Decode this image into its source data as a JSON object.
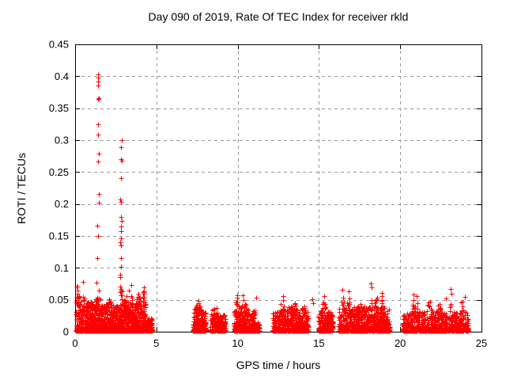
{
  "chart_data": {
    "type": "scatter",
    "title": "Day 090 of 2019, Rate Of TEC Index for receiver rkld",
    "xlabel": "GPS time / hours",
    "ylabel": "ROTI / TECUs",
    "xlim": [
      0,
      25
    ],
    "ylim": [
      0,
      0.45
    ],
    "x_ticks": [
      0,
      5,
      10,
      15,
      20,
      25
    ],
    "y_ticks": [
      0,
      0.05,
      0.1,
      0.15,
      0.2,
      0.25,
      0.3,
      0.35,
      0.4,
      0.45
    ],
    "grid": true,
    "legend": "none",
    "marker": {
      "style": "plus",
      "color": "#ff0000",
      "size": 7
    },
    "grid_color": "#999999",
    "axis_color": "#000000",
    "seed": 90,
    "clusters": [
      {
        "x0": 0.05,
        "x1": 4.35,
        "n": 1700,
        "base": 0.04,
        "pow": 3.2,
        "bumps": [
          [
            0.15,
            0.03,
            0.15
          ],
          [
            0.5,
            0.036,
            0.1
          ],
          [
            0.9,
            0.008,
            0.2
          ],
          [
            1.32,
            0.034,
            0.07
          ],
          [
            1.48,
            0.028,
            0.1
          ],
          [
            2.05,
            0.01,
            0.2
          ],
          [
            2.8,
            0.044,
            0.09
          ],
          [
            3.15,
            0.018,
            0.15
          ],
          [
            3.45,
            0.03,
            0.07
          ],
          [
            3.9,
            0.02,
            0.15
          ],
          [
            4.22,
            0.03,
            0.07
          ]
        ]
      },
      {
        "x0": 4.38,
        "x1": 4.75,
        "n": 130,
        "base": 0.02,
        "pow": 2.5,
        "bumps": []
      },
      {
        "x0": 7.25,
        "x1": 8.05,
        "n": 270,
        "base": 0.03,
        "pow": 2.7,
        "bumps": [
          [
            7.42,
            0.012,
            0.1
          ],
          [
            7.62,
            0.016,
            0.12
          ]
        ]
      },
      {
        "x0": 8.3,
        "x1": 9.25,
        "n": 270,
        "base": 0.026,
        "pow": 2.7,
        "bumps": [
          [
            8.6,
            0.015,
            0.18
          ]
        ]
      },
      {
        "x0": 9.75,
        "x1": 11.1,
        "n": 360,
        "base": 0.033,
        "pow": 2.6,
        "bumps": [
          [
            9.95,
            0.022,
            0.1
          ],
          [
            10.35,
            0.02,
            0.15
          ]
        ]
      },
      {
        "x0": 11.05,
        "x1": 11.35,
        "n": 60,
        "base": 0.014,
        "pow": 2.2,
        "bumps": []
      },
      {
        "x0": 12.15,
        "x1": 14.35,
        "n": 540,
        "base": 0.031,
        "pow": 2.6,
        "bumps": [
          [
            12.75,
            0.024,
            0.1
          ],
          [
            13.25,
            0.01,
            0.2
          ],
          [
            13.55,
            0.014,
            0.12
          ],
          [
            14.05,
            0.013,
            0.1
          ]
        ]
      },
      {
        "x0": 14.95,
        "x1": 15.85,
        "n": 250,
        "base": 0.032,
        "pow": 2.5,
        "bumps": [
          [
            15.3,
            0.022,
            0.1
          ]
        ]
      },
      {
        "x0": 16.2,
        "x1": 19.35,
        "n": 800,
        "base": 0.036,
        "pow": 2.3,
        "bumps": [
          [
            16.45,
            0.028,
            0.08
          ],
          [
            16.85,
            0.024,
            0.1
          ],
          [
            17.6,
            0.01,
            0.35
          ],
          [
            18.25,
            0.02,
            0.08
          ],
          [
            18.55,
            0.02,
            0.1
          ],
          [
            18.85,
            0.022,
            0.08
          ]
        ]
      },
      {
        "x0": 20.15,
        "x1": 20.45,
        "n": 80,
        "base": 0.028,
        "pow": 2.4,
        "bumps": []
      },
      {
        "x0": 20.45,
        "x1": 24.2,
        "n": 720,
        "base": 0.031,
        "pow": 2.5,
        "bumps": [
          [
            20.8,
            0.024,
            0.1
          ],
          [
            21.05,
            0.02,
            0.08
          ],
          [
            21.8,
            0.02,
            0.12
          ],
          [
            22.4,
            0.02,
            0.1
          ],
          [
            23.1,
            0.019,
            0.08
          ],
          [
            23.8,
            0.02,
            0.1
          ]
        ]
      }
    ],
    "outlier_points": [
      [
        1.41,
        0.403
      ],
      [
        1.43,
        0.398
      ],
      [
        1.42,
        0.392
      ],
      [
        1.42,
        0.386
      ],
      [
        1.44,
        0.366
      ],
      [
        1.42,
        0.364
      ],
      [
        1.43,
        0.325
      ],
      [
        1.42,
        0.309
      ],
      [
        1.45,
        0.279
      ],
      [
        1.43,
        0.266
      ],
      [
        1.46,
        0.216
      ],
      [
        1.46,
        0.202
      ],
      [
        1.36,
        0.166
      ],
      [
        1.42,
        0.15
      ],
      [
        1.38,
        0.115
      ],
      [
        2.85,
        0.3
      ],
      [
        2.82,
        0.289
      ],
      [
        2.84,
        0.27
      ],
      [
        2.86,
        0.268
      ],
      [
        2.82,
        0.24
      ],
      [
        2.79,
        0.207
      ],
      [
        2.83,
        0.203
      ],
      [
        2.84,
        0.18
      ],
      [
        2.86,
        0.174
      ],
      [
        2.83,
        0.165
      ],
      [
        2.84,
        0.157
      ],
      [
        2.82,
        0.146
      ],
      [
        2.79,
        0.14
      ],
      [
        2.84,
        0.135
      ],
      [
        2.81,
        0.115
      ],
      [
        2.84,
        0.102
      ],
      [
        2.78,
        0.089
      ],
      [
        0.12,
        0.071
      ],
      [
        0.5,
        0.078
      ],
      [
        1.31,
        0.077
      ],
      [
        2.77,
        0.085
      ],
      [
        3.3,
        0.065
      ],
      [
        3.45,
        0.073
      ],
      [
        4.22,
        0.07
      ],
      [
        4.25,
        0.062
      ],
      [
        7.6,
        0.048
      ],
      [
        9.95,
        0.057
      ],
      [
        10.3,
        0.057
      ],
      [
        11.15,
        0.053
      ],
      [
        12.78,
        0.056
      ],
      [
        14.6,
        0.051
      ],
      [
        14.62,
        0.045
      ],
      [
        15.32,
        0.056
      ],
      [
        16.42,
        0.066
      ],
      [
        16.85,
        0.063
      ],
      [
        18.2,
        0.076
      ],
      [
        18.22,
        0.069
      ],
      [
        18.85,
        0.061
      ],
      [
        20.82,
        0.058
      ],
      [
        21.0,
        0.056
      ],
      [
        22.8,
        0.052
      ],
      [
        23.1,
        0.067
      ],
      [
        23.15,
        0.06
      ],
      [
        24.0,
        0.055
      ]
    ]
  }
}
